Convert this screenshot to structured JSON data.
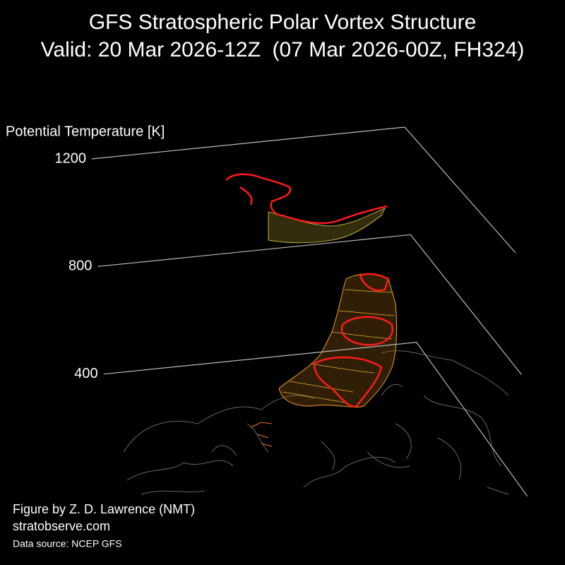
{
  "chart_data": {
    "type": "3d-volume",
    "title": "GFS Stratospheric Polar Vortex Structure",
    "subtitle": "Valid: 20 Mar 2026-12Z  (07 Mar 2026-00Z, FH324)",
    "zlabel": "Potential Temperature [K]",
    "zlim": [
      0,
      1200
    ],
    "zticks": [
      400,
      800,
      1200
    ],
    "credit": "Figure by Z. D. Lawrence (NMT)",
    "website": "stratobserve.com",
    "source": "Data source: NCEP GFS"
  }
}
